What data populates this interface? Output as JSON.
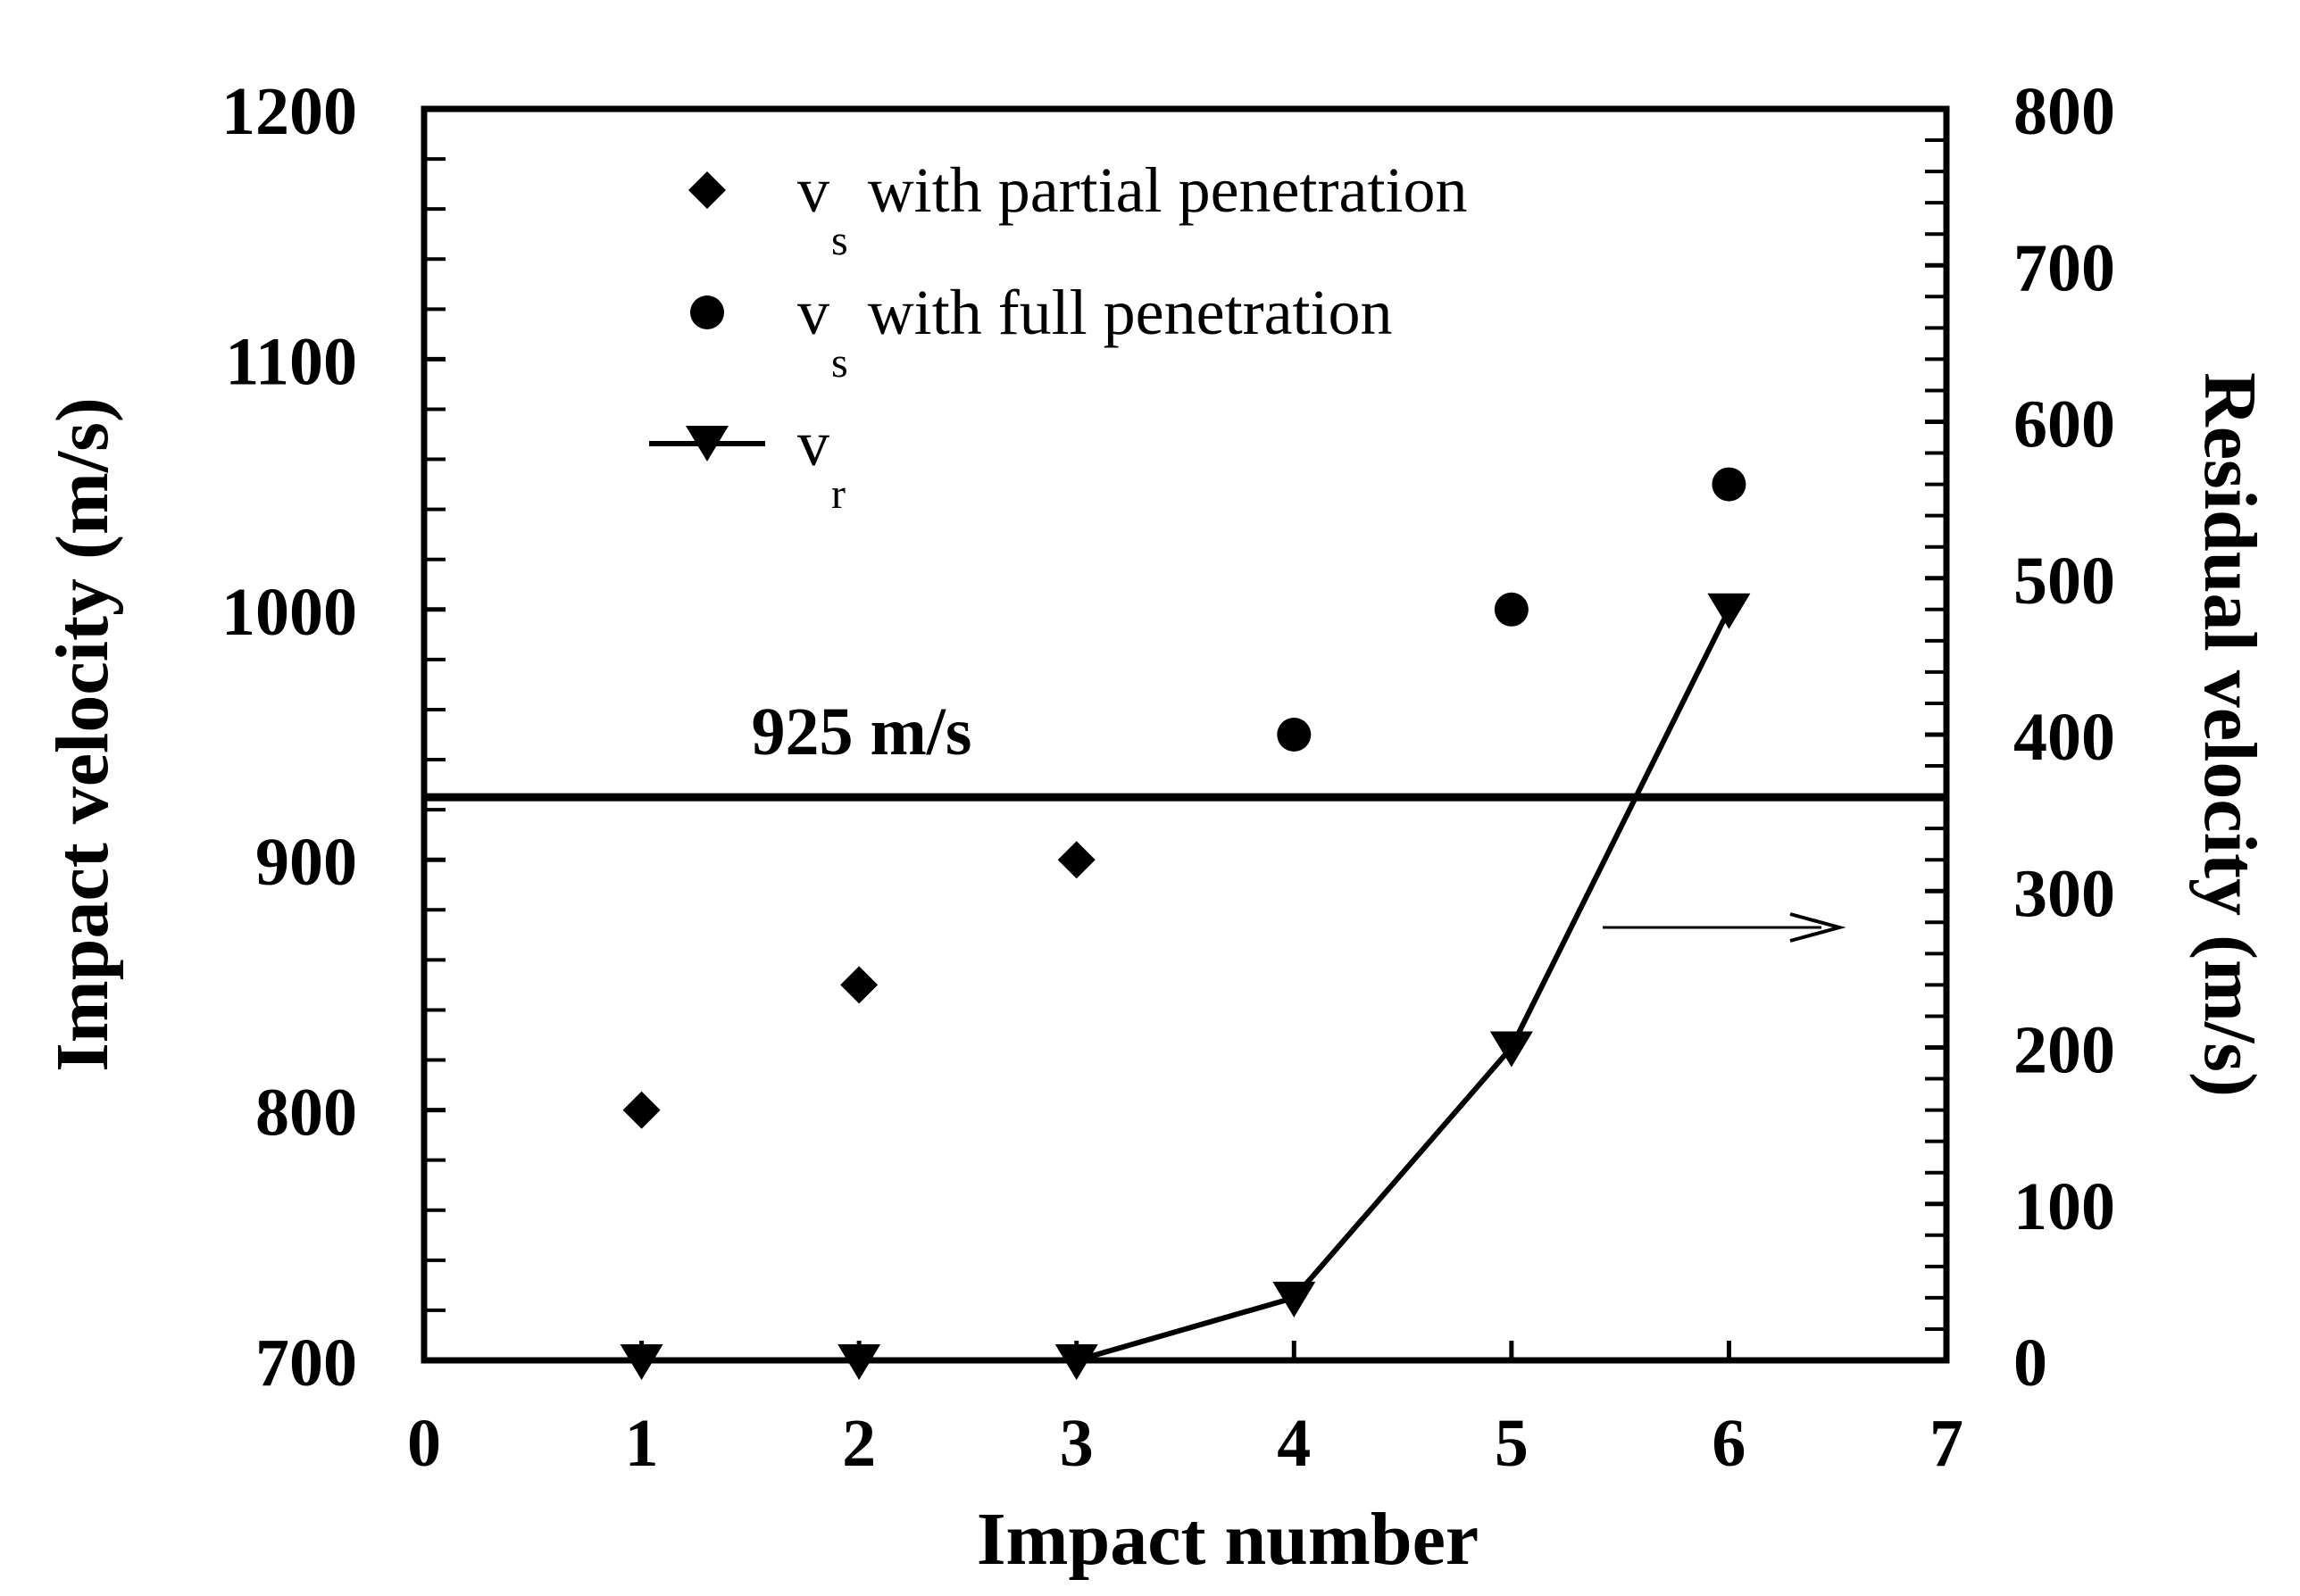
{
  "chart_data": {
    "type": "scatter",
    "title": "",
    "xlabel": "Impact number",
    "ylabel": "Impact velocity (m/s)",
    "y2label": "Residual velocity (m/s)",
    "xlim": [
      0,
      7
    ],
    "ylim": [
      700,
      1200
    ],
    "y2lim": [
      0,
      800
    ],
    "x_ticks": [
      "0",
      "1",
      "2",
      "3",
      "4",
      "5",
      "6",
      "7"
    ],
    "y_ticks": [
      "700",
      "800",
      "900",
      "1000",
      "1100",
      "1200"
    ],
    "y2_ticks": [
      "0",
      "100",
      "200",
      "300",
      "400",
      "500",
      "600",
      "700",
      "800"
    ],
    "reference_line": {
      "value": 925,
      "label": "925 m/s"
    },
    "series": [
      {
        "name": "vs with partial penetration",
        "legend_main": "v",
        "legend_sub": "s",
        "legend_rest": " with partial penetration",
        "marker": "diamond",
        "axis": "left",
        "x": [
          1,
          2,
          3
        ],
        "y": [
          800,
          850,
          900
        ]
      },
      {
        "name": "vs with full penetration",
        "legend_main": "v",
        "legend_sub": "s",
        "legend_rest": " with full penetration",
        "marker": "circle",
        "axis": "left",
        "x": [
          4,
          5,
          6
        ],
        "y": [
          950,
          1000,
          1050
        ]
      },
      {
        "name": "vr",
        "legend_main": "v",
        "legend_sub": "r",
        "legend_rest": "",
        "marker": "triangle-down",
        "line": true,
        "axis": "right",
        "x": [
          1,
          2,
          3,
          4,
          5,
          6
        ],
        "y": [
          0,
          0,
          0,
          40,
          200,
          480
        ]
      }
    ],
    "annotation_arrow": {
      "direction": "right",
      "meaning": "series vr refers to the right axis"
    },
    "legend_position": "top-left"
  }
}
